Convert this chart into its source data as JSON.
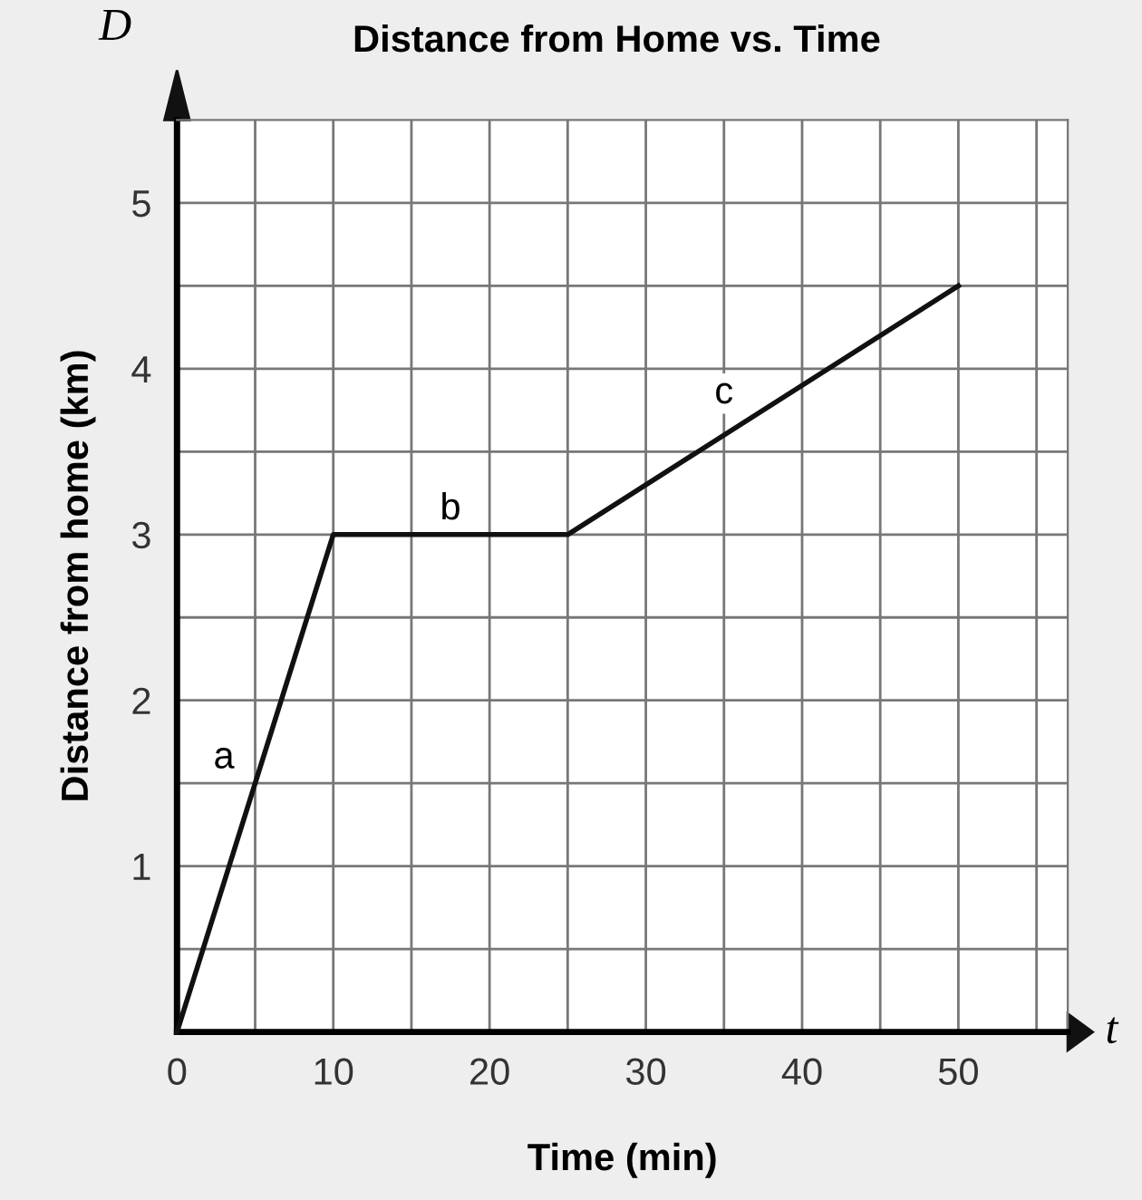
{
  "chart_data": {
    "type": "line",
    "title": "Distance from Home vs. Time",
    "xlabel": "Time (min)",
    "ylabel": "Distance from home (km)",
    "x": [
      0,
      10,
      25,
      50
    ],
    "series": [
      {
        "color": "#111111",
        "values": [
          0,
          3,
          3,
          4.5
        ]
      }
    ],
    "xlim": [
      0,
      57
    ],
    "ylim": [
      0,
      5.5
    ],
    "xticks": [
      0,
      {
        "value": 5,
        "label": null
      },
      10,
      {
        "value": 15,
        "label": null
      },
      20,
      {
        "value": 25,
        "label": null
      },
      30,
      {
        "value": 35,
        "label": null
      },
      40,
      {
        "value": 45,
        "label": null
      },
      50,
      {
        "value": 55,
        "label": null
      }
    ],
    "yticks": [
      {
        "value": 0,
        "label": null
      },
      {
        "value": 0.5,
        "label": null
      },
      1,
      {
        "value": 1.5,
        "label": null
      },
      2,
      {
        "value": 2.5,
        "label": null
      },
      3,
      {
        "value": 3.5,
        "label": null
      },
      4,
      {
        "value": 4.5,
        "label": null
      },
      5
    ],
    "grid": true,
    "marker": "none",
    "line_style": "solid",
    "legend": false,
    "annotations": [
      {
        "text": "a",
        "x": 3,
        "y": 1.65
      },
      {
        "text": "b",
        "x": 17.5,
        "y": 3.15
      },
      {
        "text": "c",
        "x": 35,
        "y": 3.85
      },
      "D",
      "t"
    ]
  }
}
